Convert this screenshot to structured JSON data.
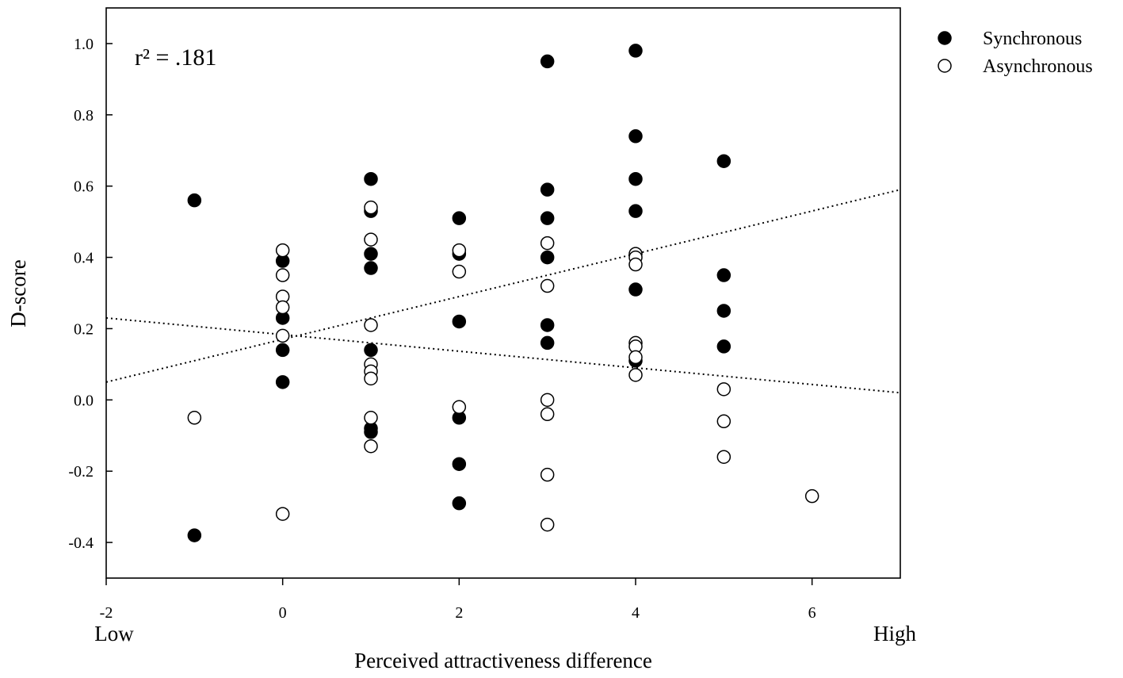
{
  "chart_data": {
    "type": "scatter",
    "title": "",
    "xlabel": "Perceived attractiveness difference",
    "ylabel": "D-score",
    "xlim": [
      -2,
      7
    ],
    "ylim": [
      -0.5,
      1.1
    ],
    "xticks": [
      -2,
      0,
      2,
      4,
      6
    ],
    "xtick_labels": [
      "-2",
      "0",
      "2",
      "4",
      "6"
    ],
    "yticks": [
      -0.4,
      -0.2,
      0.0,
      0.2,
      0.4,
      0.6,
      0.8,
      1.0
    ],
    "ytick_labels": [
      "-0.4",
      "-0.2",
      "0.0",
      "0.2",
      "0.4",
      "0.6",
      "0.8",
      "1.0"
    ],
    "x_end_labels": {
      "low": "Low",
      "high": "High"
    },
    "annotation": {
      "label": "r² = .181"
    },
    "grid": false,
    "legend_position": "top-right outside",
    "series": [
      {
        "name": "Synchronous",
        "marker": "filled-circle",
        "color": "#000000",
        "points": [
          [
            -1,
            0.56
          ],
          [
            -1,
            -0.38
          ],
          [
            0,
            0.39
          ],
          [
            0,
            0.23
          ],
          [
            0,
            0.14
          ],
          [
            0,
            0.05
          ],
          [
            1,
            0.62
          ],
          [
            1,
            0.53
          ],
          [
            1,
            0.41
          ],
          [
            1,
            0.37
          ],
          [
            1,
            0.14
          ],
          [
            1,
            -0.08
          ],
          [
            1,
            -0.09
          ],
          [
            2,
            0.51
          ],
          [
            2,
            0.41
          ],
          [
            2,
            0.22
          ],
          [
            2,
            -0.05
          ],
          [
            2,
            -0.18
          ],
          [
            2,
            -0.29
          ],
          [
            3,
            0.95
          ],
          [
            3,
            0.59
          ],
          [
            3,
            0.51
          ],
          [
            3,
            0.4
          ],
          [
            3,
            0.21
          ],
          [
            3,
            0.16
          ],
          [
            4,
            0.98
          ],
          [
            4,
            0.74
          ],
          [
            4,
            0.62
          ],
          [
            4,
            0.53
          ],
          [
            4,
            0.31
          ],
          [
            4,
            0.11
          ],
          [
            5,
            0.67
          ],
          [
            5,
            0.35
          ],
          [
            5,
            0.25
          ],
          [
            5,
            0.15
          ]
        ],
        "trendline": {
          "x": [
            -2,
            7
          ],
          "y": [
            0.05,
            0.59
          ]
        }
      },
      {
        "name": "Asynchronous",
        "marker": "open-circle",
        "color": "#000000",
        "points": [
          [
            -1,
            -0.05
          ],
          [
            0,
            0.42
          ],
          [
            0,
            0.35
          ],
          [
            0,
            0.29
          ],
          [
            0,
            0.26
          ],
          [
            0,
            0.18
          ],
          [
            0,
            -0.32
          ],
          [
            1,
            0.54
          ],
          [
            1,
            0.45
          ],
          [
            1,
            0.21
          ],
          [
            1,
            0.1
          ],
          [
            1,
            0.08
          ],
          [
            1,
            0.06
          ],
          [
            1,
            -0.05
          ],
          [
            1,
            -0.13
          ],
          [
            2,
            0.42
          ],
          [
            2,
            0.36
          ],
          [
            2,
            -0.02
          ],
          [
            3,
            0.44
          ],
          [
            3,
            0.32
          ],
          [
            3,
            0.0
          ],
          [
            3,
            -0.04
          ],
          [
            3,
            -0.21
          ],
          [
            3,
            -0.35
          ],
          [
            4,
            0.41
          ],
          [
            4,
            0.4
          ],
          [
            4,
            0.38
          ],
          [
            4,
            0.16
          ],
          [
            4,
            0.15
          ],
          [
            4,
            0.12
          ],
          [
            4,
            0.07
          ],
          [
            5,
            0.03
          ],
          [
            5,
            -0.06
          ],
          [
            5,
            -0.16
          ],
          [
            6,
            -0.27
          ]
        ],
        "trendline": {
          "x": [
            -2,
            7
          ],
          "y": [
            0.23,
            0.02
          ]
        }
      }
    ]
  }
}
